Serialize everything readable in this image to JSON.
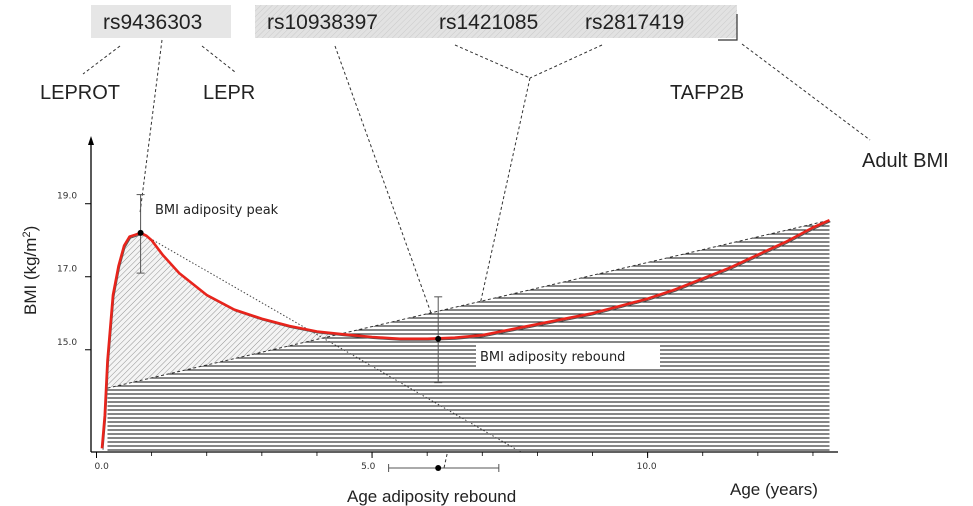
{
  "snps": {
    "rs9436303": "rs9436303",
    "rs10938397": "rs10938397",
    "rs1421085": "rs1421085",
    "rs2817419": "rs2817419"
  },
  "genes": {
    "leprot": "LEPROT",
    "lepr": "LEPR",
    "tafp2b": "TAFP2B"
  },
  "adult_bmi": "Adult BMI",
  "axes": {
    "y_title": "BMI (kg/m",
    "y_title_sup": "2",
    "y_title_end": ")",
    "x_title": "Age (years)",
    "x_sub_title": "Age adiposity rebound"
  },
  "annotations": {
    "peak": "BMI adiposity peak",
    "rebound": "BMI adiposity rebound"
  },
  "chart_data": {
    "type": "line",
    "x_ticks": [
      {
        "value": 0,
        "label": "0.0"
      },
      {
        "value": 5,
        "label": "5.0"
      },
      {
        "value": 10,
        "label": "10.0"
      }
    ],
    "y_ticks": [
      {
        "value": 15,
        "label": "15.0"
      },
      {
        "value": 17,
        "label": "17.0"
      },
      {
        "value": 19,
        "label": "19.0"
      }
    ],
    "xlim": [
      -0.1,
      13.4
    ],
    "ylim": [
      12.2,
      20.8
    ],
    "series": [
      {
        "x": [
          0.1,
          0.15,
          0.2,
          0.3,
          0.4,
          0.5,
          0.6,
          0.7,
          0.8,
          0.9,
          1.0,
          1.2,
          1.5,
          2.0,
          2.5,
          3.0,
          3.5,
          4.0,
          4.5,
          5.0,
          5.5,
          6.0,
          6.5,
          7.0,
          7.5,
          8.0,
          8.5,
          9.0,
          9.5,
          10.0,
          10.5,
          11.0,
          11.5,
          12.0,
          12.5,
          13.0,
          13.3
        ],
        "y": [
          12.3,
          13.2,
          14.7,
          16.5,
          17.3,
          17.85,
          18.1,
          18.15,
          18.2,
          18.13,
          18.0,
          17.6,
          17.1,
          16.5,
          16.1,
          15.85,
          15.65,
          15.5,
          15.42,
          15.35,
          15.3,
          15.3,
          15.33,
          15.4,
          15.55,
          15.7,
          15.85,
          16.0,
          16.2,
          16.4,
          16.65,
          16.95,
          17.25,
          17.6,
          17.95,
          18.35,
          18.55
        ]
      }
    ],
    "points": {
      "peak": {
        "x": 0.8,
        "y": 18.2,
        "err_low": 17.1,
        "err_high": 19.25
      },
      "rebound": {
        "x": 6.2,
        "y": 15.3,
        "err_low": 14.1,
        "err_high": 16.45
      },
      "age_rebound": {
        "x": 6.2,
        "err_low": 5.3,
        "err_high": 7.3
      }
    }
  }
}
